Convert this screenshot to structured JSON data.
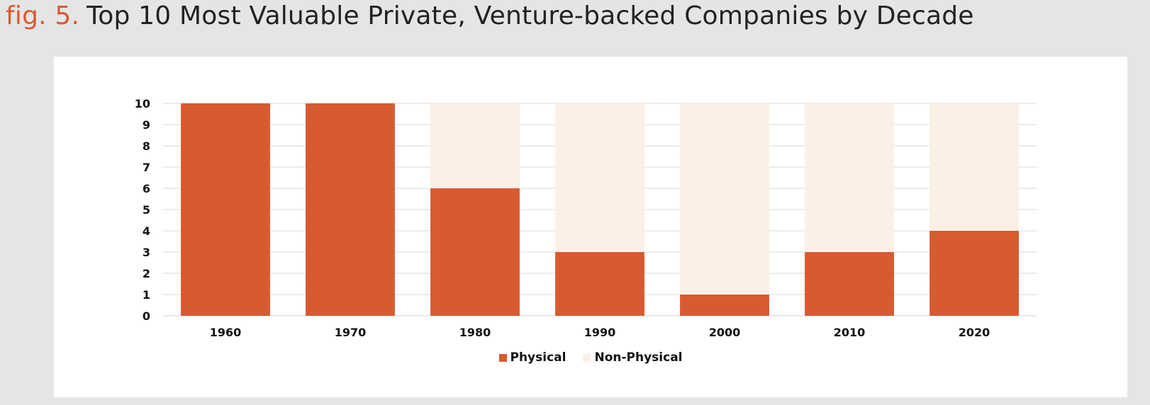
{
  "figure": {
    "label": "fig. 5.",
    "title": "Top 10 Most Valuable Private, Venture-backed Companies by Decade"
  },
  "chart_data": {
    "type": "bar",
    "stacked": true,
    "categories": [
      "1960",
      "1970",
      "1980",
      "1990",
      "2000",
      "2010",
      "2020"
    ],
    "series": [
      {
        "name": "Physical",
        "values": [
          10,
          10,
          6,
          3,
          1,
          3,
          4
        ],
        "color": "#d85a30"
      },
      {
        "name": "Non-Physical",
        "values": [
          0,
          0,
          4,
          7,
          9,
          7,
          6
        ],
        "color": "#fbf0e6"
      }
    ],
    "ylim": [
      0,
      10
    ],
    "yticks": [
      0,
      1,
      2,
      3,
      4,
      5,
      6,
      7,
      8,
      9,
      10
    ],
    "grid": true,
    "legend_position": "bottom"
  }
}
